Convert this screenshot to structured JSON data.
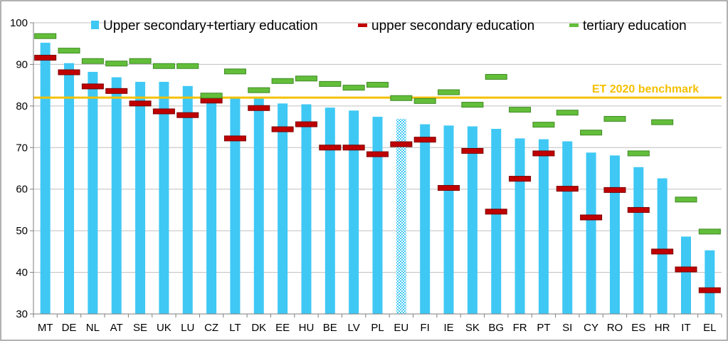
{
  "chart_data": {
    "type": "bar",
    "title": "",
    "xlabel": "",
    "ylabel": "",
    "ylim": [
      30,
      100
    ],
    "yticks": [
      30,
      40,
      50,
      60,
      70,
      80,
      90,
      100
    ],
    "grid": true,
    "categories": [
      "MT",
      "DE",
      "NL",
      "AT",
      "SE",
      "UK",
      "LU",
      "CZ",
      "LT",
      "DK",
      "EE",
      "HU",
      "BE",
      "LV",
      "PL",
      "EU",
      "FI",
      "IE",
      "SK",
      "BG",
      "FR",
      "PT",
      "SI",
      "CY",
      "RO",
      "ES",
      "HR",
      "IT",
      "EL"
    ],
    "highlight_category": "EU",
    "series": [
      {
        "name": "Upper secondary+tertiary education",
        "kind": "bar",
        "color": "#3FC8F4",
        "values": [
          95.2,
          90.3,
          88.2,
          86.9,
          85.8,
          85.8,
          84.8,
          82.1,
          81.8,
          81.8,
          80.6,
          80.4,
          79.6,
          78.9,
          77.4,
          76.9,
          75.6,
          75.3,
          75.1,
          74.5,
          72.2,
          72.0,
          71.5,
          68.8,
          68.1,
          65.3,
          62.6,
          48.6,
          45.3
        ]
      },
      {
        "name": "upper secondary education",
        "kind": "marker",
        "color": "#C00000",
        "values": [
          91.6,
          88.1,
          84.7,
          83.6,
          80.6,
          78.7,
          77.8,
          81.3,
          72.2,
          79.5,
          74.4,
          75.6,
          70.0,
          70.0,
          68.4,
          70.8,
          71.9,
          60.3,
          69.2,
          54.6,
          62.5,
          68.6,
          60.1,
          53.2,
          59.8,
          55.0,
          45.0,
          40.7,
          35.7
        ]
      },
      {
        "name": "tertiary education",
        "kind": "marker",
        "color": "#63BE3A",
        "values": [
          96.8,
          93.3,
          90.8,
          90.2,
          90.8,
          89.6,
          89.6,
          82.5,
          88.3,
          83.8,
          86.0,
          86.6,
          85.3,
          84.4,
          85.1,
          81.9,
          81.2,
          83.3,
          80.3,
          87.0,
          79.1,
          75.5,
          78.4,
          73.6,
          76.9,
          68.6,
          76.1,
          57.5,
          49.8
        ]
      }
    ],
    "benchmark": {
      "label": "ET 2020 benchmark",
      "value": 82,
      "color": "#F5C000"
    }
  }
}
